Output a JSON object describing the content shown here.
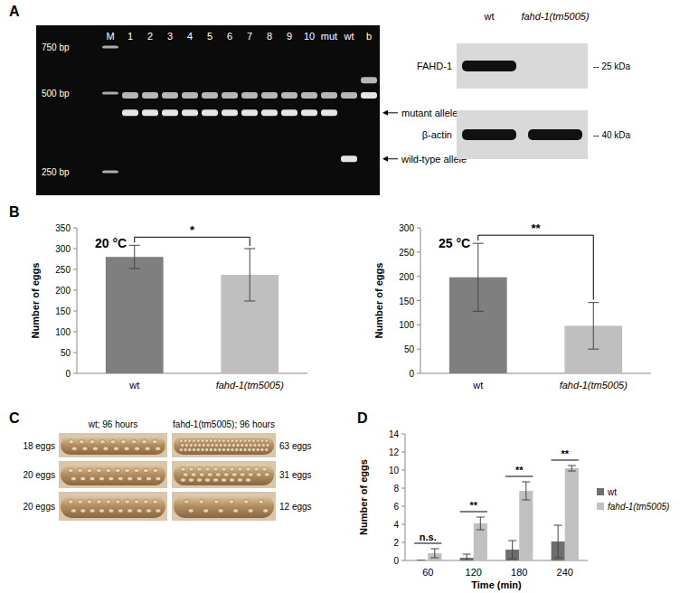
{
  "panel_labels": [
    "A",
    "B",
    "C",
    "D"
  ],
  "gel": {
    "lanes": [
      {
        "label": "M",
        "bands_bp": [
          750,
          500,
          250
        ]
      },
      {
        "label": "1",
        "bands_bp": [
          490,
          420
        ]
      },
      {
        "label": "2",
        "bands_bp": [
          490,
          420
        ]
      },
      {
        "label": "3",
        "bands_bp": [
          490,
          420
        ]
      },
      {
        "label": "4",
        "bands_bp": [
          490,
          420
        ]
      },
      {
        "label": "5",
        "bands_bp": [
          490,
          420
        ]
      },
      {
        "label": "6",
        "bands_bp": [
          490,
          420
        ]
      },
      {
        "label": "7",
        "bands_bp": [
          490,
          420
        ]
      },
      {
        "label": "8",
        "bands_bp": [
          490,
          420
        ]
      },
      {
        "label": "9",
        "bands_bp": [
          490,
          420
        ]
      },
      {
        "label": "10",
        "bands_bp": [
          490,
          420
        ]
      },
      {
        "label": "mut",
        "bands_bp": [
          490,
          420
        ]
      },
      {
        "label": "wt",
        "bands_bp": [
          490,
          280
        ]
      },
      {
        "label": "b",
        "bands_bp": [
          560,
          490
        ]
      }
    ],
    "marker_ticks": [
      {
        "value": 750,
        "label": "750 bp"
      },
      {
        "value": 500,
        "label": "500 bp"
      },
      {
        "value": 250,
        "label": "250 bp"
      }
    ],
    "annotations": [
      {
        "value": 420,
        "label": "mutant allele"
      },
      {
        "value": 280,
        "label": "wild-type allele"
      }
    ]
  },
  "western": {
    "columns": [
      "wt",
      "fahd-1(tm5005)"
    ],
    "rows": [
      {
        "label": "FAHD-1",
        "bands": [
          true,
          false
        ]
      },
      {
        "label": "β-actin",
        "bands": [
          true,
          true
        ]
      }
    ],
    "size_labels": [
      "-- 25 kDa",
      "-- 40 kDa"
    ]
  },
  "chart_data": [
    {
      "type": "bar",
      "title": "20 °C",
      "categories": [
        "wt",
        "fahd-1(tm5005)"
      ],
      "values": [
        280,
        237
      ],
      "errors": [
        28,
        63
      ],
      "colors": [
        "#7f7f7f",
        "#bfbfbf"
      ],
      "y_label": "Number of eggs",
      "ylim": [
        0,
        350
      ],
      "yticks": [
        0,
        50,
        100,
        150,
        200,
        250,
        300,
        350
      ],
      "annotations": [
        {
          "text": "*",
          "categories": [
            0,
            1
          ]
        }
      ]
    },
    {
      "type": "bar",
      "title": "25 °C",
      "categories": [
        "wt",
        "fahd-1(tm5005)"
      ],
      "values": [
        198,
        98
      ],
      "errors": [
        70,
        48
      ],
      "colors": [
        "#7f7f7f",
        "#bfbfbf"
      ],
      "y_label": "Number of eggs",
      "ylim": [
        0,
        300
      ],
      "yticks": [
        0,
        50,
        100,
        150,
        200,
        250,
        300
      ],
      "annotations": [
        {
          "text": "**",
          "categories": [
            0,
            1
          ]
        }
      ]
    },
    {
      "type": "bar",
      "categories": [
        60,
        120,
        180,
        240
      ],
      "x_label": "Time (min)",
      "y_label": "Number of eggs",
      "series": [
        {
          "name": "wt",
          "color": "#6e6e6e",
          "values": [
            0,
            0.3,
            1.2,
            2.1
          ],
          "errors": [
            0,
            0.4,
            1.0,
            1.8
          ]
        },
        {
          "name": "fahd-1(tm5005)",
          "color": "#c0c0c0",
          "values": [
            0.8,
            4.1,
            7.7,
            10.2
          ],
          "errors": [
            0.5,
            0.7,
            1.0,
            0.3
          ]
        }
      ],
      "ylim": [
        0,
        14
      ],
      "yticks": [
        0,
        2,
        4,
        6,
        8,
        10,
        12,
        14
      ],
      "legend": "right",
      "annotations": [
        {
          "text": "n.s.",
          "categories": [
            0
          ]
        },
        {
          "text": "**",
          "categories": [
            1
          ]
        },
        {
          "text": "**",
          "categories": [
            2
          ]
        },
        {
          "text": "**",
          "categories": [
            3
          ]
        }
      ]
    }
  ],
  "micrographs": {
    "columns": [
      {
        "title": "wt; 96 hours",
        "eggs": [
          {
            "value": 18,
            "label": "18 eggs"
          },
          {
            "value": 20,
            "label": "20 eggs"
          },
          {
            "value": 20,
            "label": "20 eggs"
          }
        ]
      },
      {
        "title": "fahd-1(tm5005); 96 hours",
        "eggs": [
          {
            "value": 63,
            "label": "63 eggs"
          },
          {
            "value": 31,
            "label": "31 eggs"
          },
          {
            "value": 12,
            "label": "12 eggs"
          }
        ]
      }
    ]
  }
}
